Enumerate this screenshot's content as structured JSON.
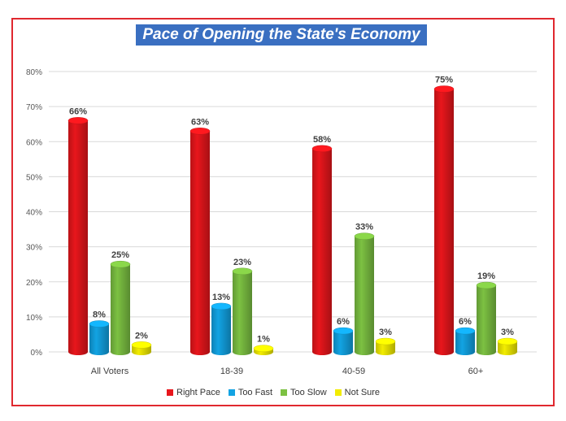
{
  "chart_data": {
    "type": "bar",
    "title": "Pace of Opening the State's Economy",
    "categories": [
      "All Voters",
      "18-39",
      "40-59",
      "60+"
    ],
    "series": [
      {
        "name": "Right Pace",
        "values": [
          66,
          63,
          58,
          75
        ],
        "color": "#e8161c"
      },
      {
        "name": "Too Fast",
        "values": [
          8,
          13,
          6,
          6
        ],
        "color": "#12a3e3"
      },
      {
        "name": "Too Slow",
        "values": [
          25,
          23,
          33,
          19
        ],
        "color": "#7cc142"
      },
      {
        "name": "Not Sure",
        "values": [
          2,
          1,
          3,
          3
        ],
        "color": "#f2ec00"
      }
    ],
    "data_labels": [
      [
        "66%",
        "63%",
        "58%",
        "75%"
      ],
      [
        "8%",
        "13%",
        "6%",
        "6%"
      ],
      [
        "25%",
        "23%",
        "33%",
        "19%"
      ],
      [
        "2%",
        "1%",
        "3%",
        "3%"
      ]
    ],
    "yticks": [
      "0%",
      "10%",
      "20%",
      "30%",
      "40%",
      "50%",
      "60%",
      "70%",
      "80%"
    ],
    "ylim": [
      0,
      80
    ],
    "grid": true,
    "legend": "bottom",
    "border_color": "#e0282f",
    "title_background": "#3a6fc1"
  }
}
